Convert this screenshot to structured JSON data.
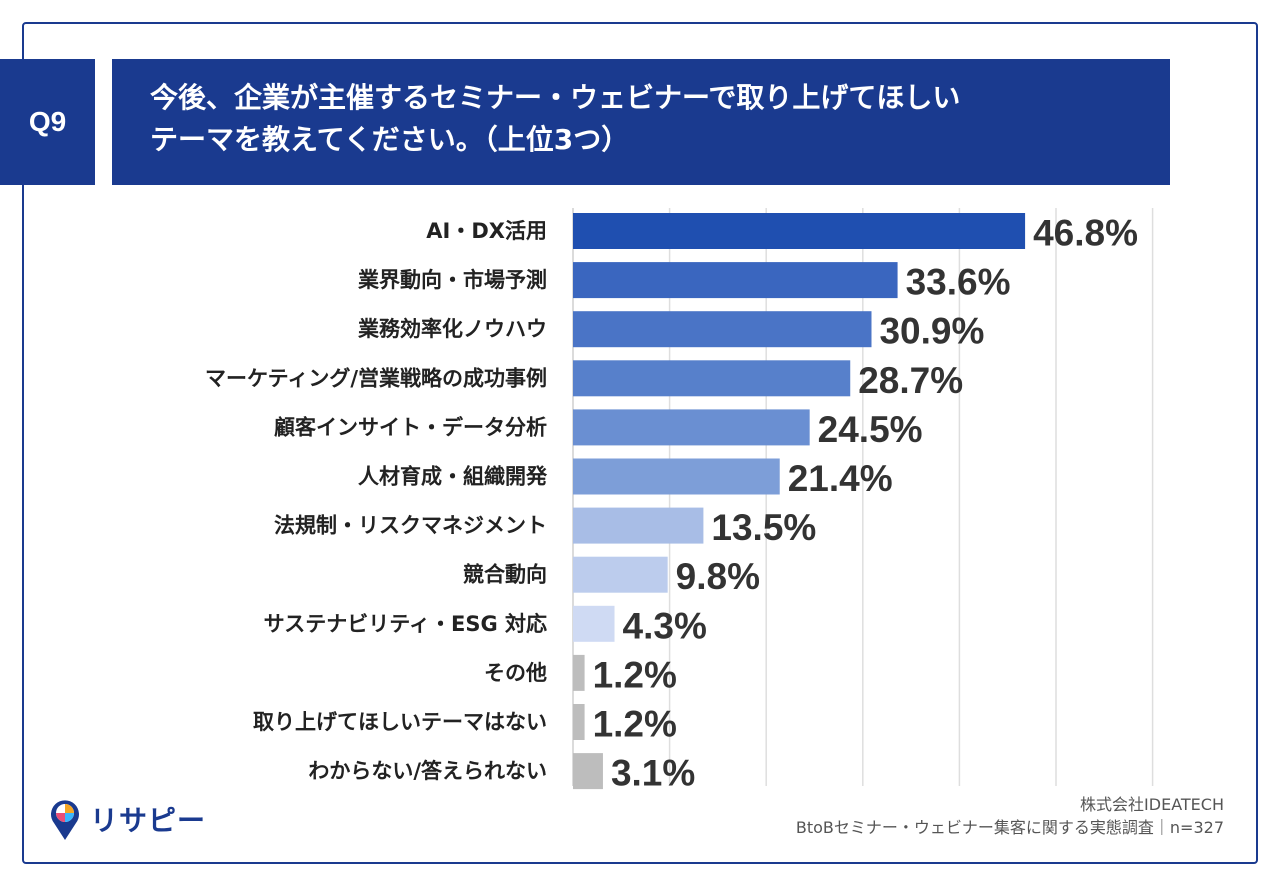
{
  "header": {
    "badge": "Q9",
    "title_line1": "今後、企業が主催するセミナー・ウェビナーで取り上げてほしい",
    "title_line2": "テーマを教えてください。（上位3つ）"
  },
  "chart_data": {
    "type": "bar",
    "orientation": "horizontal",
    "categories": [
      "AI・DX活用",
      "業界動向・市場予測",
      "業務効率化ノウハウ",
      "マーケティング/営業戦略の成功事例",
      "顧客インサイト・データ分析",
      "人材育成・組織開発",
      "法規制・リスクマネジメント",
      "競合動向",
      "サステナビリティ・ESG 対応",
      "その他",
      "取り上げてほしいテーマはない",
      "わからない/答えられない"
    ],
    "values": [
      46.8,
      33.6,
      30.9,
      28.7,
      24.5,
      21.4,
      13.5,
      9.8,
      4.3,
      1.2,
      1.2,
      3.1
    ],
    "value_labels": [
      "46.8%",
      "33.6%",
      "30.9%",
      "28.7%",
      "24.5%",
      "21.4%",
      "13.5%",
      "9.8%",
      "4.3%",
      "1.2%",
      "1.2%",
      "3.1%"
    ],
    "bar_colors": [
      "#1f4fb0",
      "#3a66bf",
      "#4a74c6",
      "#5780cb",
      "#6a8fd2",
      "#7d9ed8",
      "#a8bde6",
      "#bccced",
      "#cfdaf3",
      "#bdbdbd",
      "#bdbdbd",
      "#bdbdbd"
    ],
    "xlim": [
      0,
      60
    ],
    "grid": true
  },
  "footer": {
    "company": "株式会社IDEATECH",
    "survey": "BtoBセミナー・ウェビナー集客に関する実態調査｜n=327"
  },
  "logo": {
    "text": "リサピー",
    "icon": "map-pin-icon",
    "colors": [
      "#1a3a8f",
      "#f5a623",
      "#e94e77",
      "#38b6ff"
    ]
  }
}
